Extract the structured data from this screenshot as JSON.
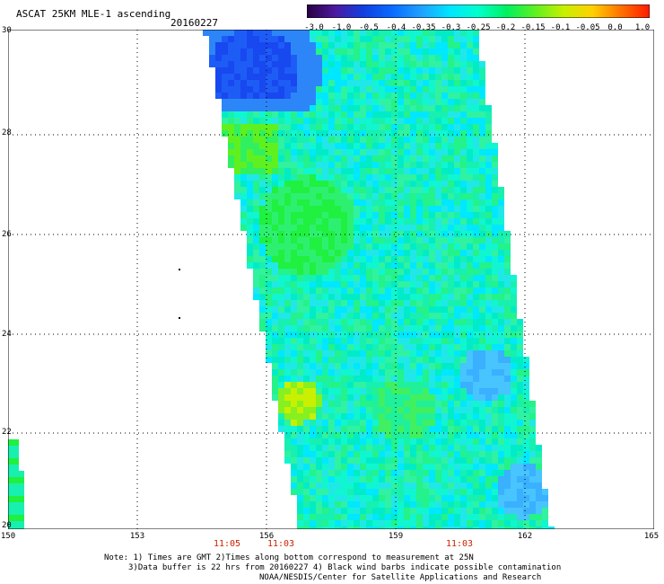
{
  "header": {
    "title": "ASCAT 25KM MLE-1 ascending",
    "date": "20160227"
  },
  "colorbar": {
    "labels": [
      "-3.0",
      "-1.0",
      "-0.5",
      "-0.4",
      "-0.35",
      "-0.3",
      "-0.25",
      "-0.2",
      "-0.15",
      "-0.1",
      "-0.05",
      "0.0",
      "1.0"
    ],
    "colors": [
      "#2a0040",
      "#4b1aa0",
      "#1040e0",
      "#0a6cff",
      "#1fa0ff",
      "#00e5ff",
      "#00ffcc",
      "#00f060",
      "#60f020",
      "#c8f000",
      "#ffd000",
      "#ff7000",
      "#ff1a00"
    ]
  },
  "axes": {
    "lat_labels": [
      "30",
      "28",
      "26",
      "24",
      "22",
      "20"
    ],
    "lon_labels": [
      "150",
      "153",
      "156",
      "159",
      "162",
      "165"
    ]
  },
  "times": [
    "11:05",
    "11:03",
    "11:03"
  ],
  "notes": {
    "line1": "Note: 1) Times are GMT 2)Times along bottom correspond to measurement at 25N",
    "line2": "3)Data buffer is 22 hrs from 20160227 4) Black wind barbs indicate possible contamination",
    "line3": "NOAA/NESDIS/Center for Satellite Applications and Research"
  }
}
